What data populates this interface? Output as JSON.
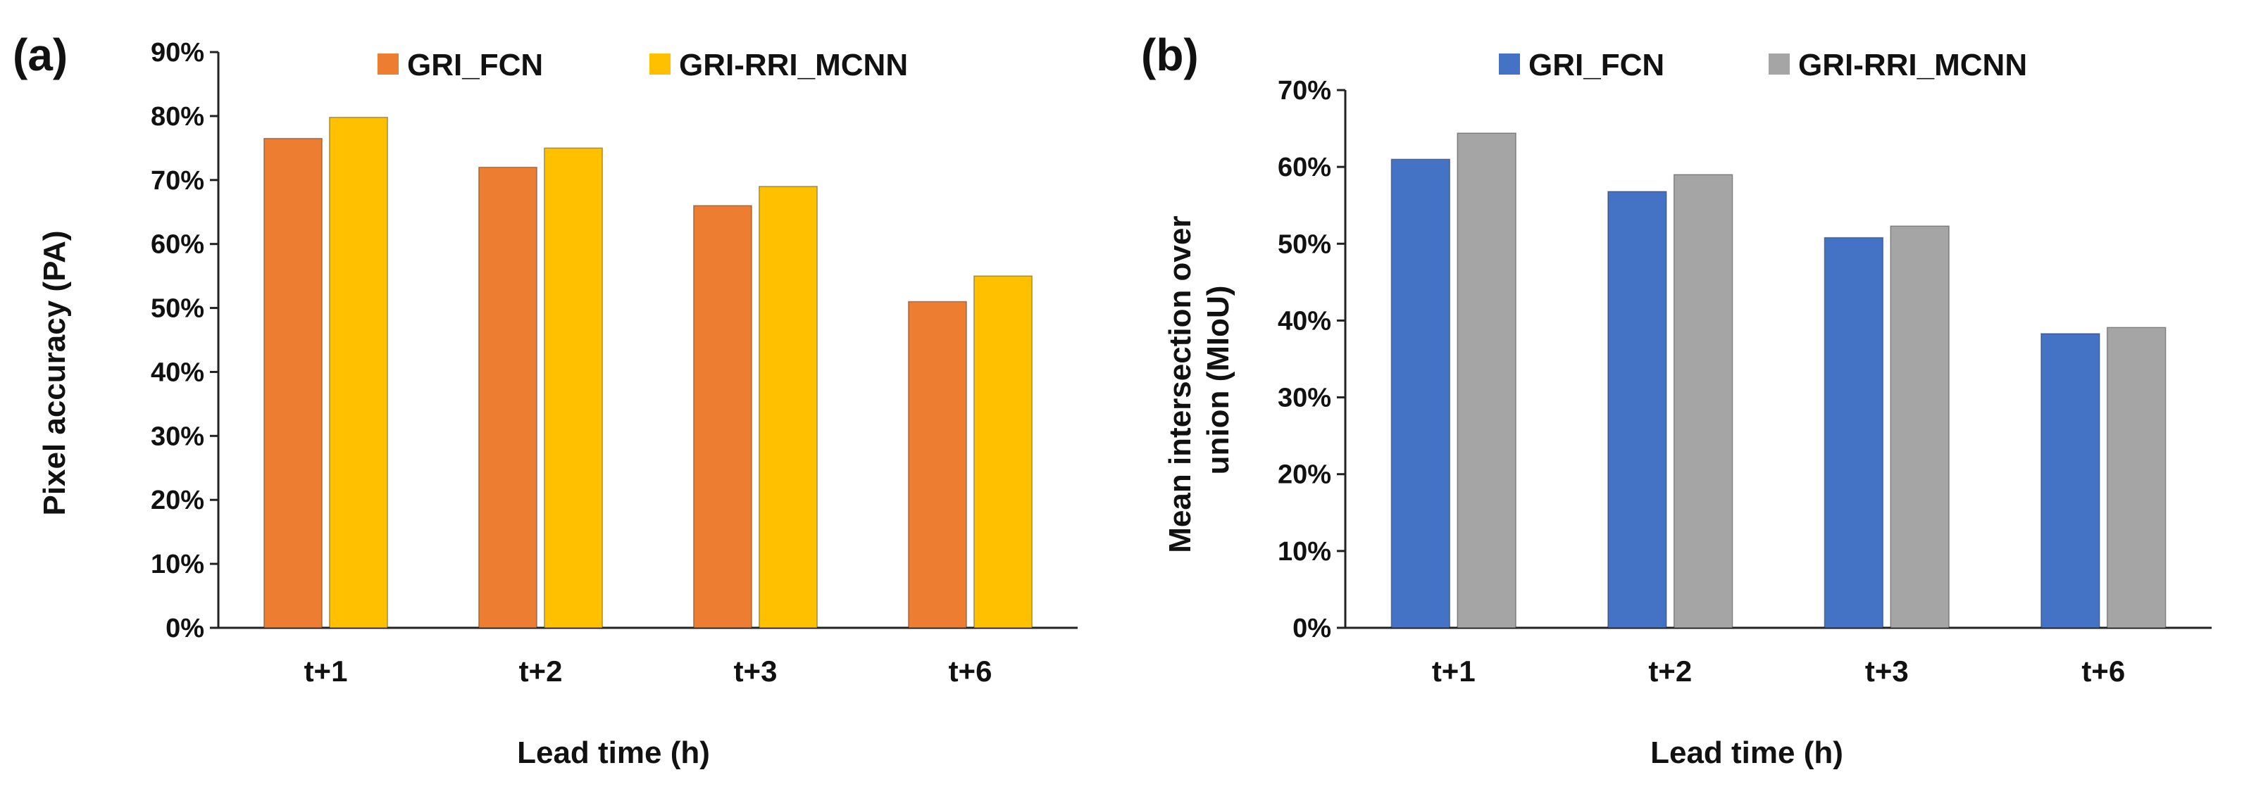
{
  "chart_data": [
    {
      "panel_label": "(a)",
      "type": "bar",
      "categories": [
        "t+1",
        "t+2",
        "t+3",
        "t+6"
      ],
      "series": [
        {
          "name": "GRI_FCN",
          "color": "#ED7D31",
          "values": [
            76.5,
            72,
            66,
            51
          ]
        },
        {
          "name": "GRI-RRI_MCNN",
          "color": "#FFC000",
          "values": [
            79.8,
            75,
            69,
            55
          ]
        }
      ],
      "xlabel": "Lead time (h)",
      "ylabel": "Pixel accuracy (PA)",
      "ylim": [
        0,
        90
      ],
      "yticks": [
        "0%",
        "10%",
        "20%",
        "30%",
        "40%",
        "50%",
        "60%",
        "70%",
        "80%",
        "90%"
      ],
      "grid": false,
      "legend": "top"
    },
    {
      "panel_label": "(b)",
      "type": "bar",
      "categories": [
        "t+1",
        "t+2",
        "t+3",
        "t+6"
      ],
      "series": [
        {
          "name": "GRI_FCN",
          "color": "#4472C4",
          "values": [
            61,
            56.8,
            50.8,
            38.3
          ]
        },
        {
          "name": "GRI-RRI_MCNN",
          "color": "#A5A5A5",
          "values": [
            64.4,
            59,
            52.3,
            39.1
          ]
        }
      ],
      "xlabel": "Lead time (h)",
      "ylabel": "Mean intersection over union (MIoU)",
      "ylabel_lines": [
        "Mean intersection over",
        "union (MIoU)"
      ],
      "ylim": [
        0,
        70
      ],
      "yticks": [
        "0%",
        "10%",
        "20%",
        "30%",
        "40%",
        "50%",
        "60%",
        "70%"
      ],
      "grid": false,
      "legend": "top"
    }
  ]
}
